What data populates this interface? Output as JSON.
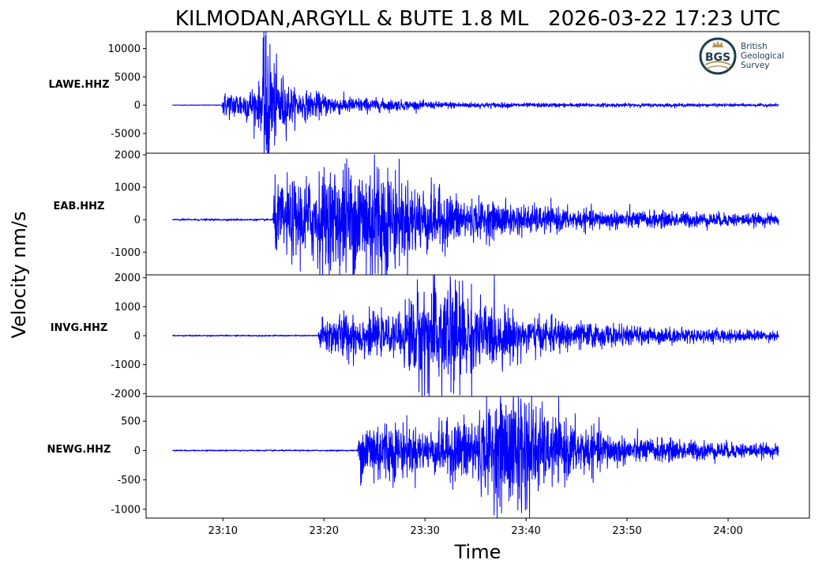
{
  "chart_data": {
    "type": "line",
    "title": "KILMODAN,ARGYLL & BUTE 1.8 ML   2026-03-22 17:23 UTC",
    "ylabel": "Velocity nm/s",
    "xlabel": "Time",
    "line_color": "#0000ff",
    "grid": false,
    "x_ticks": [
      "23:10",
      "23:20",
      "23:30",
      "23:40",
      "23:50",
      "24:00"
    ],
    "x_range": [
      "23:05",
      "24:05"
    ],
    "logo": {
      "name": "bgs-logo",
      "badge": "BGS",
      "lines": [
        "British",
        "Geological",
        "Survey"
      ]
    },
    "panels": [
      {
        "station": "LAWE.HHZ",
        "ylim": [
          -8500,
          13000
        ],
        "y_ticks": [
          10000,
          5000,
          0,
          -5000
        ],
        "noise_level": 30,
        "envelope": [
          {
            "t": "23:09.9",
            "amp": 60
          },
          {
            "t": "23:10.0",
            "amp": 1200
          },
          {
            "t": "23:12.0",
            "amp": 1400
          },
          {
            "t": "23:13.8",
            "amp": 2200
          },
          {
            "t": "23:14.2",
            "amp": 10000
          },
          {
            "t": "23:15.0",
            "amp": 4000
          },
          {
            "t": "23:17.0",
            "amp": 1500
          },
          {
            "t": "23:22.0",
            "amp": 800
          },
          {
            "t": "23:30.0",
            "amp": 350
          },
          {
            "t": "23:40.0",
            "amp": 200
          },
          {
            "t": "24:04.8",
            "amp": 130
          }
        ],
        "peak_max": 12200,
        "peak_min": -8000
      },
      {
        "station": "EAB.HHZ",
        "ylim": [
          -1700,
          2050
        ],
        "y_ticks": [
          2000,
          1000,
          0,
          -1000
        ],
        "noise_level": 15,
        "envelope": [
          {
            "t": "23:14.9",
            "amp": 20
          },
          {
            "t": "23:15.1",
            "amp": 550
          },
          {
            "t": "23:17.0",
            "amp": 650
          },
          {
            "t": "23:20.0",
            "amp": 800
          },
          {
            "t": "23:23.0",
            "amp": 1050
          },
          {
            "t": "23:25.0",
            "amp": 1100
          },
          {
            "t": "23:28.0",
            "amp": 650
          },
          {
            "t": "23:35.0",
            "amp": 320
          },
          {
            "t": "23:45.0",
            "amp": 170
          },
          {
            "t": "24:04.8",
            "amp": 90
          }
        ],
        "peak_max": 2000,
        "peak_min": -1650
      },
      {
        "station": "INVG.HHZ",
        "ylim": [
          -2100,
          2100
        ],
        "y_ticks": [
          2000,
          1000,
          0,
          -1000,
          -2000
        ],
        "noise_level": 12,
        "envelope": [
          {
            "t": "23:19.4",
            "amp": 15
          },
          {
            "t": "23:19.6",
            "amp": 300
          },
          {
            "t": "23:22.0",
            "amp": 450
          },
          {
            "t": "23:27.0",
            "amp": 300
          },
          {
            "t": "23:29.0",
            "amp": 900
          },
          {
            "t": "23:32.5",
            "amp": 1150
          },
          {
            "t": "23:35.0",
            "amp": 700
          },
          {
            "t": "23:40.0",
            "amp": 350
          },
          {
            "t": "23:50.0",
            "amp": 170
          },
          {
            "t": "24:04.8",
            "amp": 90
          }
        ],
        "peak_max": 2050,
        "peak_min": -1950
      },
      {
        "station": "NEWG.HHZ",
        "ylim": [
          -1150,
          920
        ],
        "y_ticks": [
          500,
          0,
          -500,
          -1000
        ],
        "noise_level": 6,
        "envelope": [
          {
            "t": "23:23.3",
            "amp": 10
          },
          {
            "t": "23:23.6",
            "amp": 250
          },
          {
            "t": "23:25.0",
            "amp": 330
          },
          {
            "t": "23:30.0",
            "amp": 180
          },
          {
            "t": "23:36.0",
            "amp": 380
          },
          {
            "t": "23:39.5",
            "amp": 620
          },
          {
            "t": "23:42.0",
            "amp": 320
          },
          {
            "t": "23:50.0",
            "amp": 120
          },
          {
            "t": "24:04.8",
            "amp": 55
          }
        ],
        "peak_max": 880,
        "peak_min": -1060
      }
    ]
  }
}
